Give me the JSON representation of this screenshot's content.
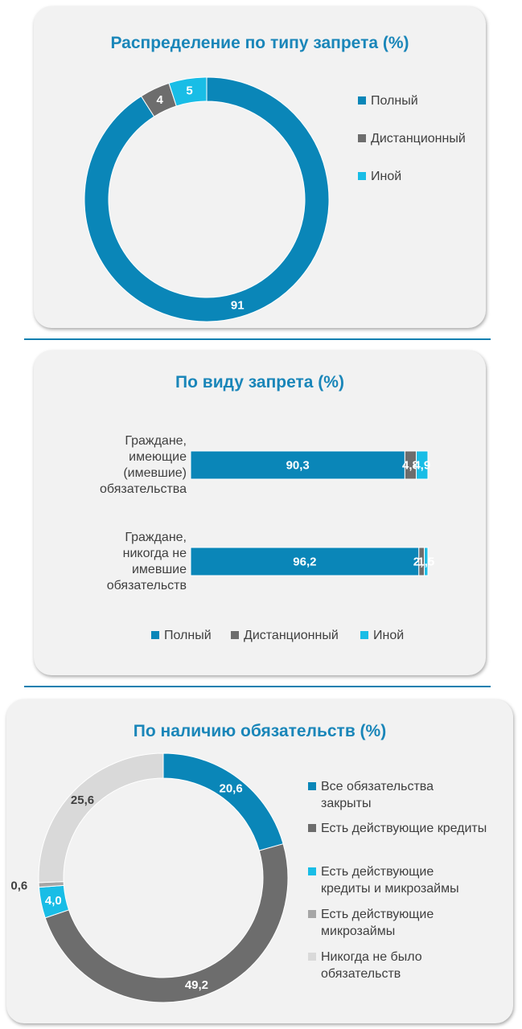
{
  "colors": {
    "full": "#0a86b8",
    "remote": "#6d6d6d",
    "other": "#19bde6",
    "light_gray": "#a6a6a6",
    "pale_gray": "#d9d9d9",
    "title": "#1a86b9"
  },
  "chart_data": [
    {
      "type": "pie",
      "variant": "donut",
      "title": "Распределение по типу запрета (%)",
      "categories": [
        "Полный",
        "Дистанционный",
        "Иной"
      ],
      "values": [
        91,
        4,
        5
      ],
      "labels": [
        "91",
        "4",
        "5"
      ],
      "colors": [
        "#0a86b8",
        "#6d6d6d",
        "#19bde6"
      ],
      "legend_position": "right"
    },
    {
      "type": "bar",
      "variant": "stacked-horizontal-100",
      "title": "По виду запрета (%)",
      "categories": [
        "Граждане, имеющие (имевшие) обязательства",
        "Граждане, никогда не имевшие обязательств"
      ],
      "category_lines": [
        [
          "Граждане,",
          "имеющие",
          "(имевшие)",
          "обязательства"
        ],
        [
          "Граждане,",
          "никогда не",
          "имевшие",
          "обязательств"
        ]
      ],
      "series": [
        {
          "name": "Полный",
          "values": [
            90.3,
            96.2
          ],
          "labels": [
            "90,3",
            "96,2"
          ],
          "color": "#0a86b8"
        },
        {
          "name": "Дистанционный",
          "values": [
            4.8,
            2.3
          ],
          "labels": [
            "4,8",
            "2,3"
          ],
          "color": "#6d6d6d"
        },
        {
          "name": "Иной",
          "values": [
            4.9,
            1.5
          ],
          "labels": [
            "4,9",
            "1,5"
          ],
          "color": "#19bde6"
        }
      ],
      "legend_position": "bottom"
    },
    {
      "type": "pie",
      "variant": "donut",
      "title": "По наличию обязательств (%)",
      "categories": [
        "Все обязательства закрыты",
        "Есть действующие кредиты",
        "Есть действующие кредиты и микрозаймы",
        "Есть действующие микрозаймы",
        "Никогда не было обязательств"
      ],
      "legend_lines": [
        [
          "Все обязательства",
          "закрыты"
        ],
        [
          "Есть действующие кредиты"
        ],
        [
          "Есть действующие",
          "кредиты и микрозаймы"
        ],
        [
          "Есть действующие",
          "микрозаймы"
        ],
        [
          "Никогда не было",
          "обязательств"
        ]
      ],
      "values": [
        20.6,
        49.2,
        4.0,
        0.6,
        25.6
      ],
      "labels": [
        "20,6",
        "49,2",
        "4,0",
        "0,6",
        "25,6"
      ],
      "colors": [
        "#0a86b8",
        "#6d6d6d",
        "#19bde6",
        "#a6a6a6",
        "#d9d9d9"
      ],
      "legend_position": "right"
    }
  ]
}
